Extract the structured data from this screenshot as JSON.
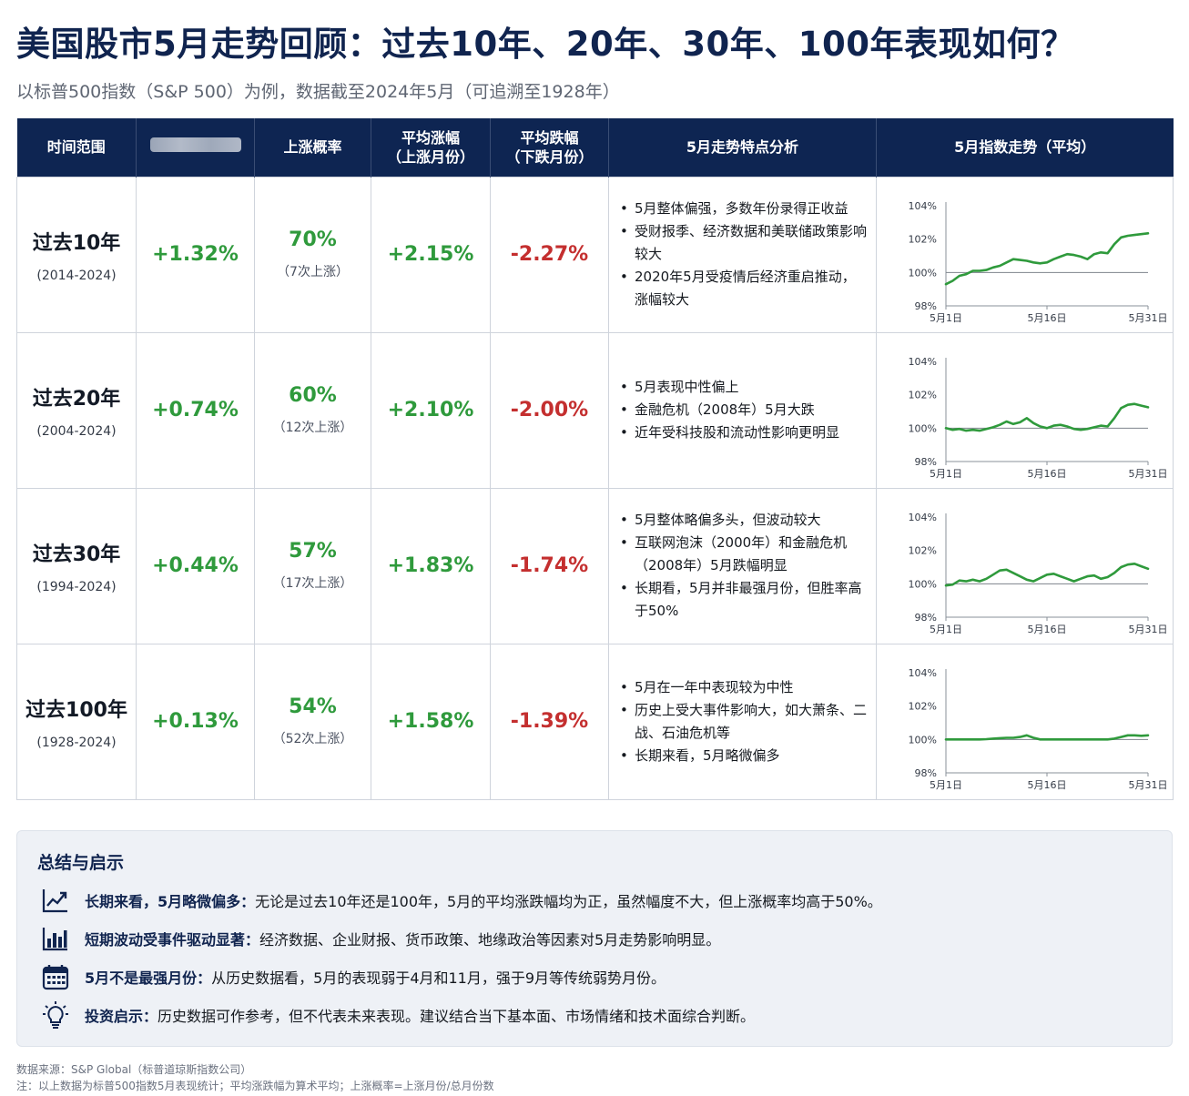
{
  "title": "美国股市5月走势回顾：过去10年、20年、30年、100年表现如何？",
  "subtitle": "以标普500指数（S&P 500）为例，数据截至2024年5月（可追溯至1928年）",
  "table": {
    "headers": {
      "range": "时间范围",
      "avg_return": "",
      "up_prob": "上涨概率",
      "avg_gain_l1": "平均涨幅",
      "avg_gain_l2": "（上涨月份）",
      "avg_loss_l1": "平均跌幅",
      "avg_loss_l2": "（下跌月份）",
      "analysis": "5月走势特点分析",
      "trend": "5月指数走势（平均）"
    },
    "rows": [
      {
        "name": "过去10年",
        "years": "(2014-2024)",
        "avg_return": "+1.32%",
        "prob": "70%",
        "prob_note": "（7次上涨）",
        "avg_gain": "+2.15%",
        "avg_loss": "-2.27%",
        "points": [
          "5月整体偏强，多数年份录得正收益",
          "受财报季、经济数据和美联储政策影响较大",
          "2020年5月受疫情后经济重启推动，涨幅较大"
        ]
      },
      {
        "name": "过去20年",
        "years": "(2004-2024)",
        "avg_return": "+0.74%",
        "prob": "60%",
        "prob_note": "（12次上涨）",
        "avg_gain": "+2.10%",
        "avg_loss": "-2.00%",
        "points": [
          "5月表现中性偏上",
          "金融危机（2008年）5月大跌",
          "近年受科技股和流动性影响更明显"
        ]
      },
      {
        "name": "过去30年",
        "years": "(1994-2024)",
        "avg_return": "+0.44%",
        "prob": "57%",
        "prob_note": "（17次上涨）",
        "avg_gain": "+1.83%",
        "avg_loss": "-1.74%",
        "points": [
          "5月整体略偏多头，但波动较大",
          "互联网泡沫（2000年）和金融危机（2008年）5月跌幅明显",
          "长期看，5月并非最强月份，但胜率高于50%"
        ]
      },
      {
        "name": "过去100年",
        "years": "(1928-2024)",
        "avg_return": "+0.13%",
        "prob": "54%",
        "prob_note": "（52次上涨）",
        "avg_gain": "+1.58%",
        "avg_loss": "-1.39%",
        "points": [
          "5月在一年中表现较为中性",
          "历史上受大事件影响大，如大萧条、二战、石油危机等",
          "长期来看，5月略微偏多"
        ]
      }
    ]
  },
  "chart_data": [
    {
      "type": "line",
      "title": "",
      "x_ticks": [
        "5月1日",
        "5月16日",
        "5月31日"
      ],
      "y_ticks": [
        "104%",
        "102%",
        "100%",
        "98%"
      ],
      "ylim": [
        98,
        104
      ],
      "baseline": 100,
      "color": "#2f9a3c",
      "x": [
        1,
        2,
        3,
        4,
        5,
        6,
        7,
        8,
        9,
        10,
        11,
        12,
        13,
        14,
        15,
        16,
        17,
        18,
        19,
        20,
        21,
        22,
        23,
        24,
        25,
        26,
        27,
        28,
        29,
        30,
        31
      ],
      "values": [
        99.3,
        99.5,
        99.8,
        99.9,
        100.1,
        100.1,
        100.15,
        100.3,
        100.4,
        100.6,
        100.8,
        100.75,
        100.7,
        100.6,
        100.55,
        100.6,
        100.8,
        100.95,
        101.1,
        101.05,
        100.95,
        100.8,
        101.1,
        101.2,
        101.15,
        101.7,
        102.1,
        102.2,
        102.25,
        102.3,
        102.35
      ]
    },
    {
      "type": "line",
      "title": "",
      "x_ticks": [
        "5月1日",
        "5月16日",
        "5月31日"
      ],
      "y_ticks": [
        "104%",
        "102%",
        "100%",
        "98%"
      ],
      "ylim": [
        98,
        104
      ],
      "baseline": 100,
      "color": "#2f9a3c",
      "x": [
        1,
        2,
        3,
        4,
        5,
        6,
        7,
        8,
        9,
        10,
        11,
        12,
        13,
        14,
        15,
        16,
        17,
        18,
        19,
        20,
        21,
        22,
        23,
        24,
        25,
        26,
        27,
        28,
        29,
        30,
        31
      ],
      "values": [
        100.0,
        99.9,
        99.95,
        99.85,
        99.9,
        99.85,
        99.95,
        100.05,
        100.2,
        100.4,
        100.25,
        100.35,
        100.6,
        100.3,
        100.1,
        100.0,
        100.15,
        100.2,
        100.1,
        99.95,
        99.9,
        99.95,
        100.05,
        100.15,
        100.1,
        100.6,
        101.2,
        101.4,
        101.45,
        101.35,
        101.25
      ]
    },
    {
      "type": "line",
      "title": "",
      "x_ticks": [
        "5月1日",
        "5月16日",
        "5月31日"
      ],
      "y_ticks": [
        "104%",
        "102%",
        "100%",
        "98%"
      ],
      "ylim": [
        98,
        104
      ],
      "baseline": 100,
      "color": "#2f9a3c",
      "x": [
        1,
        2,
        3,
        4,
        5,
        6,
        7,
        8,
        9,
        10,
        11,
        12,
        13,
        14,
        15,
        16,
        17,
        18,
        19,
        20,
        21,
        22,
        23,
        24,
        25,
        26,
        27,
        28,
        29,
        30,
        31
      ],
      "values": [
        99.9,
        99.95,
        100.2,
        100.15,
        100.25,
        100.15,
        100.3,
        100.55,
        100.8,
        100.85,
        100.65,
        100.45,
        100.25,
        100.15,
        100.35,
        100.55,
        100.6,
        100.45,
        100.3,
        100.15,
        100.3,
        100.45,
        100.5,
        100.3,
        100.4,
        100.65,
        101.0,
        101.15,
        101.2,
        101.05,
        100.9
      ]
    },
    {
      "type": "line",
      "title": "",
      "x_ticks": [
        "5月1日",
        "5月16日",
        "5月31日"
      ],
      "y_ticks": [
        "104%",
        "102%",
        "100%",
        "98%"
      ],
      "ylim": [
        98,
        104
      ],
      "baseline": 100,
      "color": "#2f9a3c",
      "x": [
        1,
        2,
        3,
        4,
        5,
        6,
        7,
        8,
        9,
        10,
        11,
        12,
        13,
        14,
        15,
        16,
        17,
        18,
        19,
        20,
        21,
        22,
        23,
        24,
        25,
        26,
        27,
        28,
        29,
        30,
        31
      ],
      "values": [
        100.0,
        100.0,
        100.0,
        100.0,
        100.0,
        100.0,
        100.02,
        100.05,
        100.08,
        100.1,
        100.1,
        100.15,
        100.25,
        100.1,
        100.0,
        100.0,
        100.0,
        100.0,
        100.0,
        100.0,
        100.0,
        100.0,
        100.0,
        100.0,
        100.0,
        100.05,
        100.15,
        100.25,
        100.25,
        100.22,
        100.25
      ]
    }
  ],
  "summary": {
    "title": "总结与启示",
    "items": [
      {
        "icon": "trend-up-icon",
        "key": "长期来看，5月略微偏多：",
        "text": "无论是过去10年还是100年，5月的平均涨跌幅均为正，虽然幅度不大，但上涨概率均高于50%。"
      },
      {
        "icon": "bar-chart-icon",
        "key": "短期波动受事件驱动显著：",
        "text": "经济数据、企业财报、货币政策、地缘政治等因素对5月走势影响明显。"
      },
      {
        "icon": "calendar-icon",
        "key": "5月不是最强月份：",
        "text": "从历史数据看，5月的表现弱于4月和11月，强于9月等传统弱势月份。"
      },
      {
        "icon": "lightbulb-icon",
        "key": "投资启示：",
        "text": "历史数据可作参考，但不代表未来表现。建议结合当下基本面、市场情绪和技术面综合判断。"
      }
    ]
  },
  "footer": {
    "source": "数据来源：S&P Global（标普道琼斯指数公司）",
    "note": "注：以上数据为标普500指数5月表现统计；平均涨跌幅为算术平均；上涨概率=上涨月份/总月份数"
  },
  "colors": {
    "header_bg": "#0e2552",
    "positive": "#2f9a3c",
    "negative": "#c42f2f",
    "title": "#10244f"
  }
}
